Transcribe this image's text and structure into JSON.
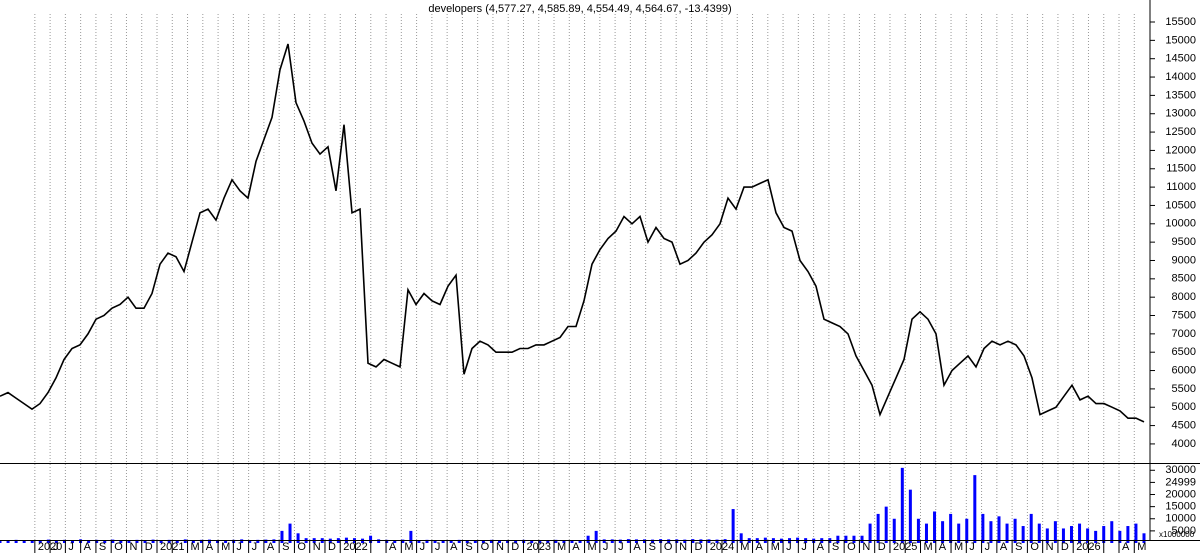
{
  "chart_data": [
    {
      "type": "line",
      "title": "developers (4,577.27, 4,585.89, 4,554.49, 4,564.67, -13.4399)",
      "x_axis_labels": [
        "2020",
        "J",
        "J",
        "A",
        "S",
        "O",
        "N",
        "D",
        "2021",
        null,
        "M",
        "A",
        "M",
        "J",
        "J",
        "A",
        "S",
        "O",
        "N",
        "D",
        "2022",
        null,
        null,
        "A",
        "M",
        "J",
        "J",
        "A",
        "S",
        "O",
        "N",
        "D",
        "2023",
        null,
        "M",
        "A",
        "M",
        "J",
        "J",
        "A",
        "S",
        "O",
        "N",
        "D",
        "2024",
        null,
        "M",
        "A",
        "M",
        "J",
        "J",
        "A",
        "S",
        "O",
        "N",
        "D",
        "2025",
        null,
        "M",
        "A",
        "M",
        "J",
        "J",
        "A",
        "S",
        "O",
        "N",
        "D",
        "2026",
        null,
        null,
        "A",
        "M"
      ],
      "series": [
        {
          "color": "#000000",
          "values": [
            5300,
            5400,
            5250,
            5100,
            4950,
            5100,
            5400,
            5800,
            6300,
            6600,
            6700,
            7000,
            7400,
            7500,
            7700,
            7800,
            8000,
            7700,
            7700,
            8100,
            8900,
            9200,
            9100,
            8700,
            9500,
            10300,
            10400,
            10100,
            10700,
            11200,
            10900,
            10700,
            11700,
            12300,
            12900,
            14200,
            14900,
            13300,
            12800,
            12200,
            11900,
            12100,
            10900,
            12700,
            10300,
            10400,
            6200,
            6100,
            6300,
            6200,
            6100,
            8200,
            7800,
            8100,
            7900,
            7800,
            8300,
            8600,
            5900,
            6600,
            6800,
            6700,
            6500,
            6500,
            6500,
            6600,
            6600,
            6700,
            6700,
            6800,
            6900,
            7200,
            7200,
            7900,
            8900,
            9300,
            9600,
            9800,
            10200,
            10000,
            10200,
            9500,
            9900,
            9600,
            9500,
            8900,
            9000,
            9200,
            9500,
            9700,
            10000,
            10700,
            10400,
            11000,
            11000,
            11100,
            11200,
            10300,
            9900,
            9800,
            9000,
            8700,
            8300,
            7400,
            7300,
            7200,
            7000,
            6400,
            6000,
            5600,
            4800,
            5300,
            5800,
            6300,
            7400,
            7600,
            7400,
            7000,
            5600,
            6000,
            6200,
            6400,
            6100,
            6600,
            6800,
            6700,
            6800,
            6700,
            6400,
            5800,
            4800,
            4900,
            5000,
            5300,
            5600,
            5200,
            5300,
            5100,
            5100,
            5000,
            4900,
            4700,
            4700,
            4600
          ]
        }
      ],
      "ylim": [
        3480,
        16100
      ],
      "yticks": [
        4000,
        4500,
        5000,
        5500,
        6000,
        6500,
        7000,
        7500,
        8000,
        8500,
        9000,
        9500,
        10000,
        10500,
        11000,
        11500,
        12000,
        12500,
        13000,
        13500,
        14000,
        14500,
        15000,
        15500
      ],
      "grid": true
    },
    {
      "type": "bar",
      "unit_label": "x1000000",
      "series": [
        {
          "color": "#0000ff",
          "values": [
            1200,
            1000,
            1300,
            1100,
            1000,
            1200,
            1400,
            1100,
            1300,
            1200,
            1500,
            1100,
            1300,
            1200,
            1400,
            1000,
            1200,
            1300,
            1100,
            1400,
            1200,
            1300,
            1100,
            1500,
            1200,
            1300,
            1400,
            1200,
            1100,
            1300,
            1500,
            1200,
            1300,
            1400,
            1500,
            5000,
            8000,
            4000,
            2000,
            2000,
            2000,
            1800,
            2000,
            2200,
            2000,
            1800,
            3000,
            1500,
            1300,
            1200,
            1400,
            5000,
            1200,
            1300,
            1200,
            1100,
            1200,
            1300,
            1200,
            1100,
            1200,
            1300,
            1200,
            1100,
            1200,
            1300,
            1200,
            1100,
            1200,
            1300,
            1200,
            1100,
            1200,
            3000,
            5000,
            1500,
            1500,
            1400,
            1600,
            1500,
            1500,
            1400,
            1600,
            1500,
            1500,
            1400,
            1600,
            1500,
            1500,
            1400,
            1600,
            14000,
            4000,
            2000,
            2000,
            2200,
            2000,
            1800,
            2000,
            2200,
            2000,
            1800,
            2000,
            2000,
            3000,
            3000,
            3000,
            3000,
            8000,
            12000,
            15000,
            10000,
            31000,
            22000,
            10000,
            8000,
            13000,
            9000,
            12000,
            8000,
            10000,
            28000,
            12000,
            9000,
            11000,
            8000,
            10000,
            7000,
            12000,
            8000,
            6000,
            9000,
            6000,
            7000,
            8000,
            6000,
            5000,
            7000,
            9000,
            5000,
            7000,
            8000,
            4000
          ]
        }
      ],
      "ylim": [
        0,
        33000
      ],
      "yticks": [
        5000,
        10000,
        15000,
        20000,
        24999,
        30000
      ]
    }
  ]
}
